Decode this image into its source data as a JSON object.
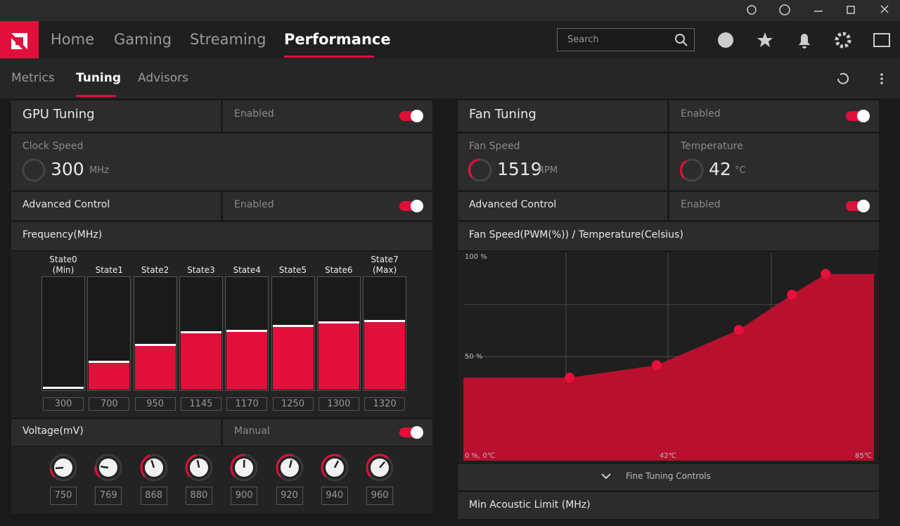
{
  "nav": {
    "items": [
      "Home",
      "Gaming",
      "Streaming",
      "Performance"
    ],
    "search": "Search"
  },
  "subnav": [
    "Metrics",
    "Tuning",
    "Advisors"
  ],
  "gpu": {
    "title": "GPU Tuning",
    "status": "Enabled",
    "clock_label": "Clock Speed",
    "clock_value": 300,
    "clock_unit": "MHz",
    "advanced_label": "Advanced Control",
    "advanced_status": "Enabled",
    "frequency_title": "Frequency(MHz)",
    "states": [
      "State0 (Min)",
      "State1",
      "State2",
      "State3",
      "State4",
      "State5",
      "State6",
      "State7 (Max)"
    ],
    "frequencies": [
      300,
      700,
      950,
      1145,
      1170,
      1250,
      1300,
      1320
    ],
    "voltage_title": "Voltage(mV)",
    "voltage_mode": "Manual",
    "voltages": [
      750,
      769,
      868,
      880,
      900,
      920,
      940,
      960
    ]
  },
  "fan": {
    "title": "Fan Tuning",
    "status": "Enabled",
    "speed_label": "Fan Speed",
    "speed_value": 1519,
    "speed_unit": "RPM",
    "temp_label": "Temperature",
    "temp_value": 42,
    "temp_unit": "°C",
    "advanced_label": "Advanced Control",
    "advanced_status": "Enabled",
    "chart_title": "Fan Speed(PWM(%)) / Temperature(Celsius)",
    "chart": {
      "y_top": "100 %",
      "y_mid": "50 %",
      "origin": "0 %, 0℃",
      "x_mid": "42℃",
      "x_max": "85℃",
      "xlim": [
        0,
        85
      ],
      "ylim": [
        0,
        100
      ],
      "temps": [
        22,
        40,
        57,
        68,
        75
      ],
      "pwm": [
        40,
        46,
        63,
        80,
        90
      ]
    },
    "fine_tuning": "Fine Tuning Controls",
    "min_acoustic": "Min Acoustic Limit (MHz)"
  }
}
